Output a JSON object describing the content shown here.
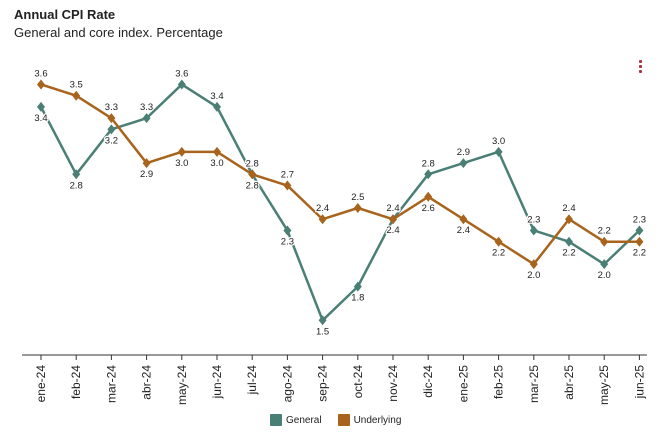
{
  "header": {
    "title": "Annual CPI Rate",
    "subtitle": "General and core index. Percentage"
  },
  "menu": {
    "icon": "vertical-dots-menu-icon",
    "color": "#a8323e"
  },
  "colors": {
    "general": "#4a7f75",
    "underlying": "#a8641c",
    "axis": "#333333"
  },
  "chart_data": {
    "type": "line",
    "title": "Annual CPI Rate",
    "subtitle": "General and core index. Percentage",
    "categories": [
      "ene-24",
      "feb-24",
      "mar-24",
      "abr-24",
      "may-24",
      "jun-24",
      "jul-24",
      "ago-24",
      "sep-24",
      "oct-24",
      "nov-24",
      "dic-24",
      "ene-25",
      "feb-25",
      "mar-25",
      "abr-25",
      "may-25",
      "jun-25"
    ],
    "series": [
      {
        "name": "General",
        "color": "#4a7f75",
        "values": [
          3.4,
          2.8,
          3.2,
          3.3,
          3.6,
          3.4,
          2.8,
          2.3,
          1.5,
          1.8,
          2.4,
          2.8,
          2.9,
          3.0,
          2.3,
          2.2,
          2.0,
          2.3
        ]
      },
      {
        "name": "Underlying",
        "color": "#a8641c",
        "values": [
          3.6,
          3.5,
          3.3,
          2.9,
          3.0,
          3.0,
          2.8,
          2.7,
          2.4,
          2.5,
          2.4,
          2.6,
          2.4,
          2.2,
          2.0,
          2.4,
          2.2,
          2.2
        ]
      }
    ],
    "ylim": [
      1.2,
      3.8
    ],
    "y_axis_visible": false,
    "grid": false,
    "legend_position": "bottom-center",
    "data_labels": true,
    "marker": "diamond"
  },
  "legend": {
    "items": [
      {
        "label": "General",
        "color": "#4a7f75"
      },
      {
        "label": "Underlying",
        "color": "#a8641c"
      }
    ]
  }
}
